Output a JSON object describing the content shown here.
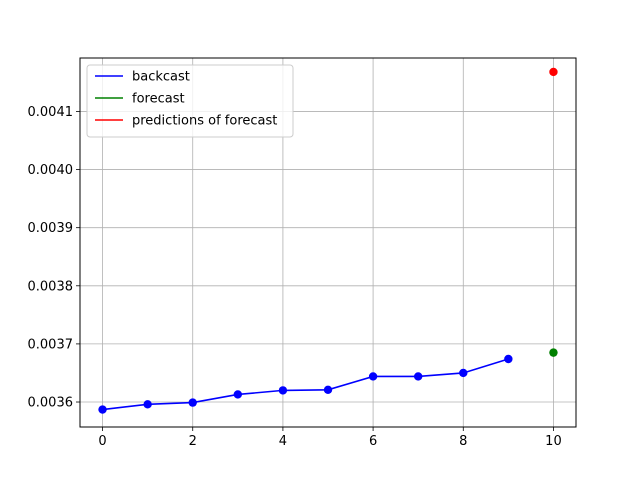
{
  "chart_data": {
    "type": "line",
    "title": "",
    "xlabel": "",
    "ylabel": "",
    "xlim": [
      -0.5,
      10.5
    ],
    "ylim": [
      0.003557,
      0.004192
    ],
    "grid": true,
    "legend_position": "upper-left",
    "x_ticks": [
      {
        "value": 0,
        "label": "0"
      },
      {
        "value": 2,
        "label": "2"
      },
      {
        "value": 4,
        "label": "4"
      },
      {
        "value": 6,
        "label": "6"
      },
      {
        "value": 8,
        "label": "8"
      },
      {
        "value": 10,
        "label": "10"
      }
    ],
    "y_ticks": [
      {
        "value": 0.0036,
        "label": "0.0036"
      },
      {
        "value": 0.0037,
        "label": "0.0037"
      },
      {
        "value": 0.0038,
        "label": "0.0038"
      },
      {
        "value": 0.0039,
        "label": "0.0039"
      },
      {
        "value": 0.004,
        "label": "0.0040"
      },
      {
        "value": 0.0041,
        "label": "0.0041"
      }
    ],
    "series": [
      {
        "name": "backcast",
        "color": "#0000ff",
        "line": true,
        "markers": true,
        "points": [
          {
            "x": 0,
            "y": 0.003587
          },
          {
            "x": 1,
            "y": 0.003596
          },
          {
            "x": 2,
            "y": 0.003599
          },
          {
            "x": 3,
            "y": 0.003613
          },
          {
            "x": 4,
            "y": 0.00362
          },
          {
            "x": 5,
            "y": 0.003621
          },
          {
            "x": 6,
            "y": 0.003644
          },
          {
            "x": 7,
            "y": 0.003644
          },
          {
            "x": 8,
            "y": 0.00365
          },
          {
            "x": 9,
            "y": 0.003674
          }
        ]
      },
      {
        "name": "forecast",
        "color": "#008000",
        "line": true,
        "markers": true,
        "points": [
          {
            "x": 10,
            "y": 0.003685
          }
        ]
      },
      {
        "name": "predictions of forecast",
        "color": "#ff0000",
        "line": true,
        "markers": true,
        "points": [
          {
            "x": 10,
            "y": 0.004168
          }
        ]
      }
    ]
  }
}
